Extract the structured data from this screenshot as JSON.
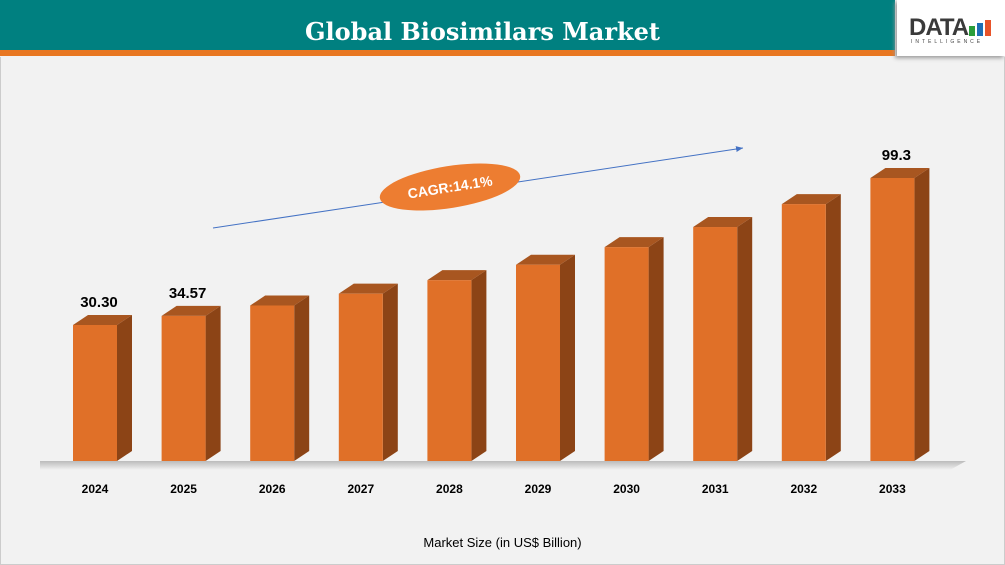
{
  "header": {
    "title": "Global Biosimilars Market"
  },
  "logo": {
    "text": "DATA",
    "subtext": "INTELLIGENCE"
  },
  "annotation": {
    "cagr": "CAGR:14.1%"
  },
  "colors": {
    "header": "#008080",
    "accent": "#e87722",
    "bar_front": "#e07028",
    "bar_side": "#8c4416",
    "bar_top": "#a85620"
  },
  "chart_data": {
    "type": "bar",
    "title": "Global Biosimilars Market",
    "xlabel": "Market Size (in US$ Billion)",
    "ylabel": "",
    "categories": [
      "2024",
      "2025",
      "2026",
      "2027",
      "2028",
      "2029",
      "2030",
      "2031",
      "2032",
      "2033"
    ],
    "values": [
      30.3,
      34.57,
      39.45,
      45.01,
      51.36,
      58.6,
      66.86,
      76.29,
      87.05,
      99.3
    ],
    "data_labels": [
      "30.30",
      "34.57",
      null,
      null,
      null,
      null,
      null,
      null,
      null,
      "99.3"
    ],
    "grid": false,
    "legend": "none"
  }
}
